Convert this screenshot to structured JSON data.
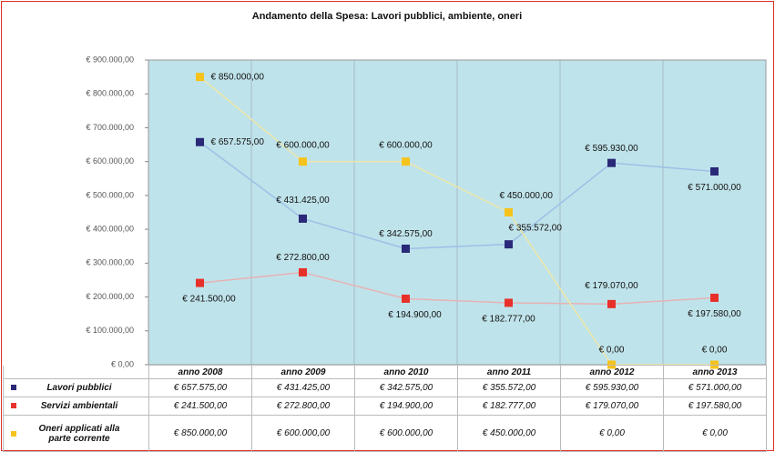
{
  "chart_data": {
    "type": "line",
    "title": "Andamento della Spesa: Lavori pubblici, ambiente, oneri",
    "categories": [
      "anno 2008",
      "anno 2009",
      "anno 2010",
      "anno 2011",
      "anno 2012",
      "anno 2013"
    ],
    "series": [
      {
        "name": "Lavori pubblici",
        "color": "#2a2878",
        "line_color": "#9cc0e6",
        "values": [
          657575,
          431425,
          342575,
          355572,
          595930,
          571000
        ],
        "value_labels": [
          "€ 657.575,00",
          "€ 431.425,00",
          "€ 342.575,00",
          "€ 355.572,00",
          "€ 595.930,00",
          "€ 571.000,00"
        ]
      },
      {
        "name": "Servizi ambientali",
        "color": "#e8302a",
        "line_color": "#e7b2b4",
        "values": [
          241500,
          272800,
          194900,
          182777,
          179070,
          197580
        ],
        "value_labels": [
          "€ 241.500,00",
          "€ 272.800,00",
          "€ 194.900,00",
          "€ 182.777,00",
          "€ 179.070,00",
          "€ 197.580,00"
        ]
      },
      {
        "name": "Oneri applicati alla parte corrente",
        "color": "#f6c31c",
        "line_color": "#ece7a8",
        "values": [
          850000,
          600000,
          600000,
          450000,
          0,
          0
        ],
        "value_labels": [
          "€ 850.000,00",
          "€ 600.000,00",
          "€ 600.000,00",
          "€ 450.000,00",
          "€ 0,00",
          "€ 0,00"
        ]
      }
    ],
    "ylim": [
      0,
      900000
    ],
    "yticks": [
      {
        "value": 0,
        "label": "€ 0,00"
      },
      {
        "value": 100000,
        "label": "€ 100.000,00"
      },
      {
        "value": 200000,
        "label": "€ 200.000,00"
      },
      {
        "value": 300000,
        "label": "€ 300.000,00"
      },
      {
        "value": 400000,
        "label": "€ 400.000,00"
      },
      {
        "value": 500000,
        "label": "€ 500.000,00"
      },
      {
        "value": 600000,
        "label": "€ 600.000,00"
      },
      {
        "value": 700000,
        "label": "€ 700.000,00"
      },
      {
        "value": 800000,
        "label": "€ 800.000,00"
      },
      {
        "value": 900000,
        "label": "€ 900.000,00"
      }
    ],
    "plot_background": "#bfe3ea"
  }
}
